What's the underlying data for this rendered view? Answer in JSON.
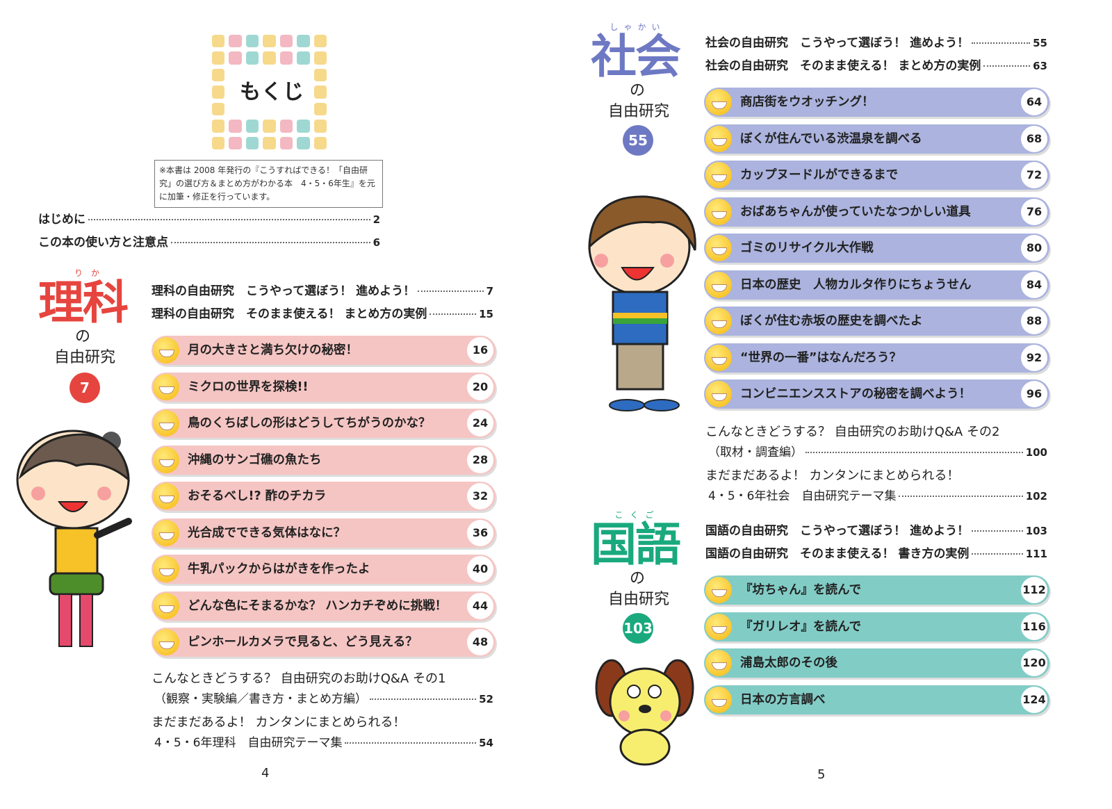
{
  "left": {
    "heading": "もくじ",
    "note": "※本書は 2008 年発行の『こうすればできる！「自由研究」の選び方＆まとめ方がわかる本　4・5・6年生』を元に加筆・修正を行っています。",
    "intro": [
      {
        "label": "はじめに",
        "page": "2"
      },
      {
        "label": "この本の使い方と注意点",
        "page": "6"
      }
    ],
    "section": {
      "subject": "理科",
      "reading": "り　か",
      "no": "の",
      "jiyu": "自由研究",
      "start_page": "7",
      "color": "#e6453f",
      "guides": [
        {
          "label": "理科の自由研究　こうやって選ぼう！ 進めよう！",
          "page": "7"
        },
        {
          "label": "理科の自由研究　そのまま使える！ まとめ方の実例",
          "page": "15"
        }
      ],
      "items": [
        {
          "title": "月の大きさと満ち欠けの秘密！",
          "page": "16"
        },
        {
          "title": "ミクロの世界を探検!!",
          "page": "20"
        },
        {
          "title": "鳥のくちばしの形はどうしてちがうのかな？",
          "page": "24"
        },
        {
          "title": "沖縄のサンゴ礁の魚たち",
          "page": "28"
        },
        {
          "title": "おそるべし!? 酢のチカラ",
          "page": "32"
        },
        {
          "title": "光合成でできる気体はなに？",
          "page": "36"
        },
        {
          "title": "牛乳パックからはがきを作ったよ",
          "page": "40"
        },
        {
          "title": "どんな色にそまるかな？ ハンカチぞめに挑戦！",
          "page": "44"
        },
        {
          "title": "ピンホールカメラで見ると、どう見える？",
          "page": "48"
        }
      ],
      "extras": [
        {
          "line1": "こんなときどうする？ 自由研究のお助けQ&A その1",
          "line2": "（観察・実験編／書き方・まとめ方編）",
          "page": "52"
        },
        {
          "line1": "まだまだあるよ！ カンタンにまとめられる！",
          "line2": "4・5・6年理科　自由研究テーマ集",
          "page": "54"
        }
      ]
    },
    "page_number": "4"
  },
  "right": {
    "sections": [
      {
        "subject": "社会",
        "reading": "しゃかい",
        "no": "の",
        "jiyu": "自由研究",
        "start_page": "55",
        "color": "#6e79c4",
        "row_color": "#abb3de",
        "guides": [
          {
            "label": "社会の自由研究　こうやって選ぼう！ 進めよう！",
            "page": "55"
          },
          {
            "label": "社会の自由研究　そのまま使える！ まとめ方の実例",
            "page": "63"
          }
        ],
        "items": [
          {
            "title": "商店街をウオッチング！",
            "page": "64"
          },
          {
            "title": "ぼくが住んでいる渋温泉を調べる",
            "page": "68"
          },
          {
            "title": "カップヌードルができるまで",
            "page": "72"
          },
          {
            "title": "おばあちゃんが使っていたなつかしい道具",
            "page": "76"
          },
          {
            "title": "ゴミのリサイクル大作戦",
            "page": "80"
          },
          {
            "title": "日本の歴史　人物カルタ作りにちょうせん",
            "page": "84"
          },
          {
            "title": "ぼくが住む赤坂の歴史を調べたよ",
            "page": "88"
          },
          {
            "title": "“世界の一番”はなんだろう？",
            "page": "92"
          },
          {
            "title": "コンビニエンスストアの秘密を調べよう！",
            "page": "96"
          }
        ],
        "extras": [
          {
            "line1": "こんなときどうする？ 自由研究のお助けQ&A その2",
            "line2": "（取材・調査編）",
            "page": "100"
          },
          {
            "line1": "まだまだあるよ！ カンタンにまとめられる！",
            "line2": "4・5・6年社会　自由研究テーマ集",
            "page": "102"
          }
        ]
      },
      {
        "subject": "国語",
        "reading": "こくご",
        "no": "の",
        "jiyu": "自由研究",
        "start_page": "103",
        "color": "#19a97d",
        "row_color": "#82ccc6",
        "guides": [
          {
            "label": "国語の自由研究　こうやって選ぼう！ 進めよう！",
            "page": "103"
          },
          {
            "label": "国語の自由研究　そのまま使える！ 書き方の実例",
            "page": "111"
          }
        ],
        "items": [
          {
            "title": "『坊ちゃん』を読んで",
            "page": "112"
          },
          {
            "title": "『ガリレオ』を読んで",
            "page": "116"
          },
          {
            "title": "浦島太郎のその後",
            "page": "120"
          },
          {
            "title": "日本の方言調べ",
            "page": "124"
          }
        ]
      }
    ],
    "page_number": "5"
  },
  "colors": {
    "rika_row": "#f5c5c3"
  }
}
